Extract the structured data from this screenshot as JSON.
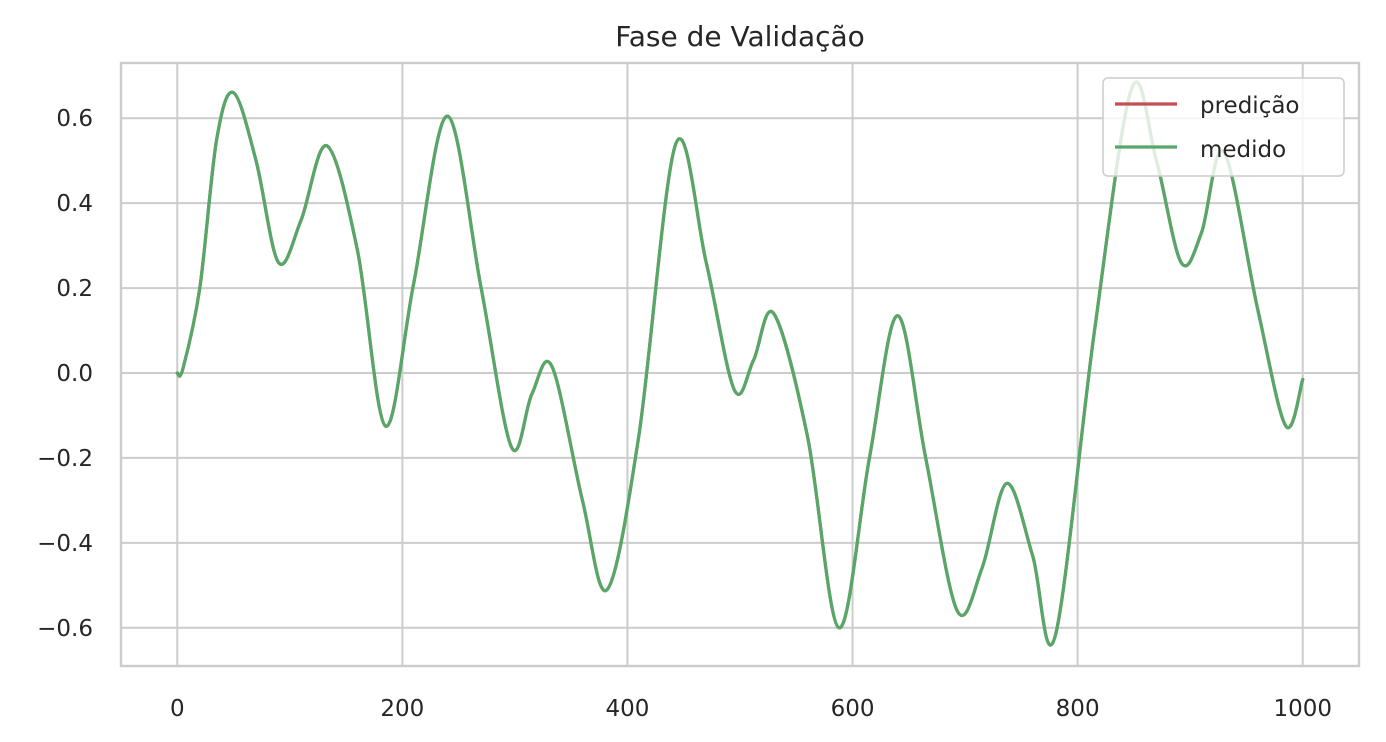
{
  "chart_data": {
    "type": "line",
    "title": "Fase de Validação",
    "xlabel": "",
    "ylabel": "",
    "xlim": [
      -50,
      1050
    ],
    "ylim": [
      -0.69,
      0.73
    ],
    "x_ticks": [
      0,
      200,
      400,
      600,
      800,
      1000
    ],
    "x_tick_labels": [
      "0",
      "200",
      "400",
      "600",
      "800",
      "1000"
    ],
    "y_ticks": [
      -0.6,
      -0.4,
      -0.2,
      0.0,
      0.2,
      0.4,
      0.6
    ],
    "y_tick_labels": [
      "−0.6",
      "−0.4",
      "−0.2",
      "0.0",
      "0.2",
      "0.4",
      "0.6"
    ],
    "grid": true,
    "legend_position": "top-right",
    "x": [
      0,
      5,
      20,
      35,
      50,
      70,
      90,
      110,
      133,
      160,
      185,
      210,
      240,
      270,
      297,
      315,
      333,
      360,
      382,
      410,
      443,
      470,
      495,
      512,
      530,
      560,
      588,
      615,
      640,
      665,
      693,
      715,
      737,
      760,
      780,
      815,
      848,
      870,
      892,
      910,
      930,
      960,
      985,
      1000
    ],
    "series": [
      {
        "name": "predição",
        "color": "#c44e52",
        "values": [
          0.0,
          0.01,
          0.2,
          0.55,
          0.66,
          0.5,
          0.26,
          0.36,
          0.535,
          0.29,
          -0.125,
          0.21,
          0.605,
          0.2,
          -0.175,
          -0.05,
          0.015,
          -0.3,
          -0.51,
          -0.15,
          0.54,
          0.26,
          -0.04,
          0.03,
          0.14,
          -0.15,
          -0.6,
          -0.2,
          0.135,
          -0.2,
          -0.56,
          -0.46,
          -0.26,
          -0.43,
          -0.62,
          0.1,
          0.67,
          0.5,
          0.26,
          0.33,
          0.52,
          0.15,
          -0.125,
          -0.015
        ]
      },
      {
        "name": "medido",
        "color": "#55a868",
        "values": [
          0.0,
          0.01,
          0.2,
          0.55,
          0.66,
          0.5,
          0.26,
          0.36,
          0.535,
          0.29,
          -0.125,
          0.21,
          0.605,
          0.2,
          -0.175,
          -0.05,
          0.015,
          -0.3,
          -0.51,
          -0.15,
          0.54,
          0.26,
          -0.04,
          0.03,
          0.14,
          -0.15,
          -0.6,
          -0.2,
          0.135,
          -0.2,
          -0.56,
          -0.46,
          -0.26,
          -0.43,
          -0.62,
          0.1,
          0.67,
          0.5,
          0.26,
          0.33,
          0.52,
          0.15,
          -0.125,
          -0.015
        ]
      }
    ]
  }
}
